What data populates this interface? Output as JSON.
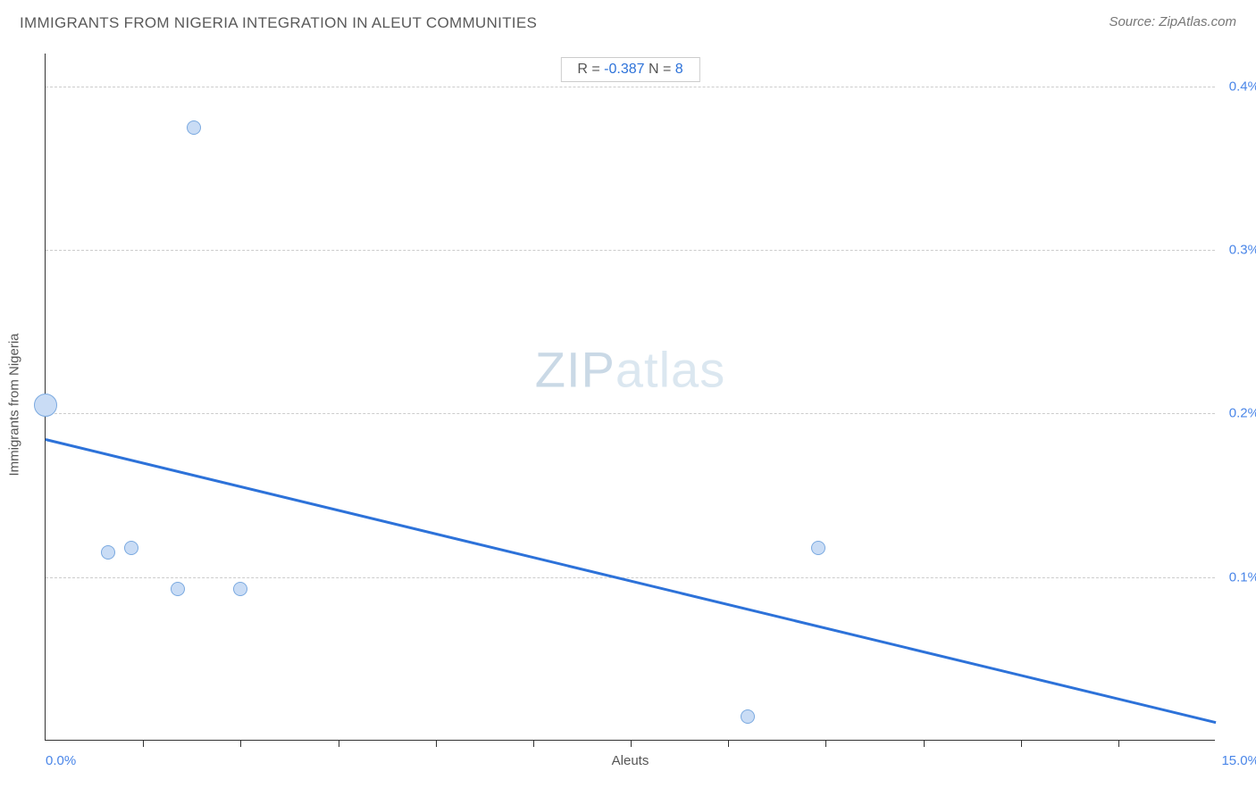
{
  "title": "IMMIGRANTS FROM NIGERIA INTEGRATION IN ALEUT COMMUNITIES",
  "source": "Source: ZipAtlas.com",
  "watermark_a": "ZIP",
  "watermark_b": "atlas",
  "stats": {
    "r_label": "R = ",
    "r_value": "-0.387",
    "n_label": "   N = ",
    "n_value": "8"
  },
  "chart": {
    "type": "scatter",
    "xlabel": "Aleuts",
    "ylabel": "Immigrants from Nigeria",
    "xlim": [
      0.0,
      15.0
    ],
    "ylim": [
      0.0,
      0.42
    ],
    "x_min_label": "0.0%",
    "x_max_label": "15.0%",
    "y_gridlines": [
      {
        "value": 0.1,
        "label": "0.1%"
      },
      {
        "value": 0.2,
        "label": "0.2%"
      },
      {
        "value": 0.3,
        "label": "0.3%"
      },
      {
        "value": 0.4,
        "label": "0.4%"
      }
    ],
    "x_ticks": [
      1.25,
      2.5,
      3.75,
      5.0,
      6.25,
      7.5,
      8.75,
      10.0,
      11.25,
      12.5,
      13.75
    ],
    "points": [
      {
        "x": 0.0,
        "y": 0.205,
        "size": 26
      },
      {
        "x": 1.9,
        "y": 0.375,
        "size": 16
      },
      {
        "x": 0.8,
        "y": 0.115,
        "size": 16
      },
      {
        "x": 1.1,
        "y": 0.118,
        "size": 16
      },
      {
        "x": 1.7,
        "y": 0.093,
        "size": 16
      },
      {
        "x": 2.5,
        "y": 0.093,
        "size": 16
      },
      {
        "x": 9.9,
        "y": 0.118,
        "size": 16
      },
      {
        "x": 9.0,
        "y": 0.015,
        "size": 16
      }
    ],
    "trend": {
      "y_at_xmin": 0.185,
      "y_at_xmax": 0.012,
      "color": "#2d72d9"
    },
    "marker_fill": "#c9dcf5",
    "marker_stroke": "#7aa9e0",
    "grid_color": "#cccccc",
    "axis_color": "#333333",
    "background_color": "#ffffff",
    "title_fontsize": 17,
    "label_fontsize": 15,
    "tick_label_color": "#4a86e8"
  }
}
